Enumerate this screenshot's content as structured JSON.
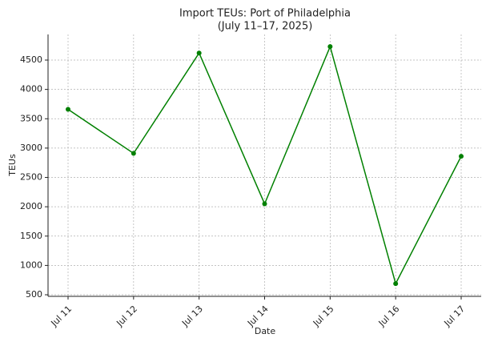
{
  "chart_data": {
    "type": "line",
    "title": "Import TEUs: Port of Philadelphia",
    "subtitle": "(July 11–17, 2025)",
    "x_label": "Date",
    "y_label": "TEUs",
    "categories": [
      "Jul 11",
      "Jul 12",
      "Jul 13",
      "Jul 14",
      "Jul 15",
      "Jul 16",
      "Jul 17"
    ],
    "values": [
      3660,
      2910,
      4620,
      2050,
      4730,
      690,
      2860
    ],
    "color": "#008000",
    "ylim": [
      473,
      4937
    ],
    "yticks": [
      500,
      1000,
      1500,
      2000,
      2500,
      3000,
      3500,
      4000,
      4500
    ],
    "grid": true
  }
}
